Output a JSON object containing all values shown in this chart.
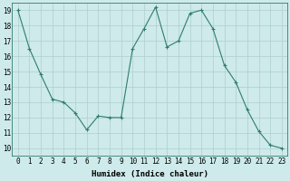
{
  "x": [
    0,
    1,
    2,
    3,
    4,
    5,
    6,
    7,
    8,
    9,
    10,
    11,
    12,
    13,
    14,
    15,
    16,
    17,
    18,
    19,
    20,
    21,
    22,
    23
  ],
  "y": [
    19,
    16.5,
    14.8,
    13.2,
    13.0,
    12.3,
    11.2,
    12.1,
    12.0,
    12.0,
    16.5,
    17.8,
    19.2,
    16.6,
    17.0,
    18.8,
    19.0,
    17.8,
    15.4,
    14.3,
    12.5,
    11.1,
    10.2,
    10.0
  ],
  "xlabel": "Humidex (Indice chaleur)",
  "xlim": [
    -0.5,
    23.5
  ],
  "ylim": [
    9.5,
    19.5
  ],
  "yticks": [
    10,
    11,
    12,
    13,
    14,
    15,
    16,
    17,
    18,
    19
  ],
  "xticks": [
    0,
    1,
    2,
    3,
    4,
    5,
    6,
    7,
    8,
    9,
    10,
    11,
    12,
    13,
    14,
    15,
    16,
    17,
    18,
    19,
    20,
    21,
    22,
    23
  ],
  "line_color": "#2e7d6e",
  "marker": "+",
  "bg_color": "#ceeaea",
  "grid_color": "#aecece",
  "tick_fontsize": 5.5,
  "xlabel_fontsize": 6.5
}
